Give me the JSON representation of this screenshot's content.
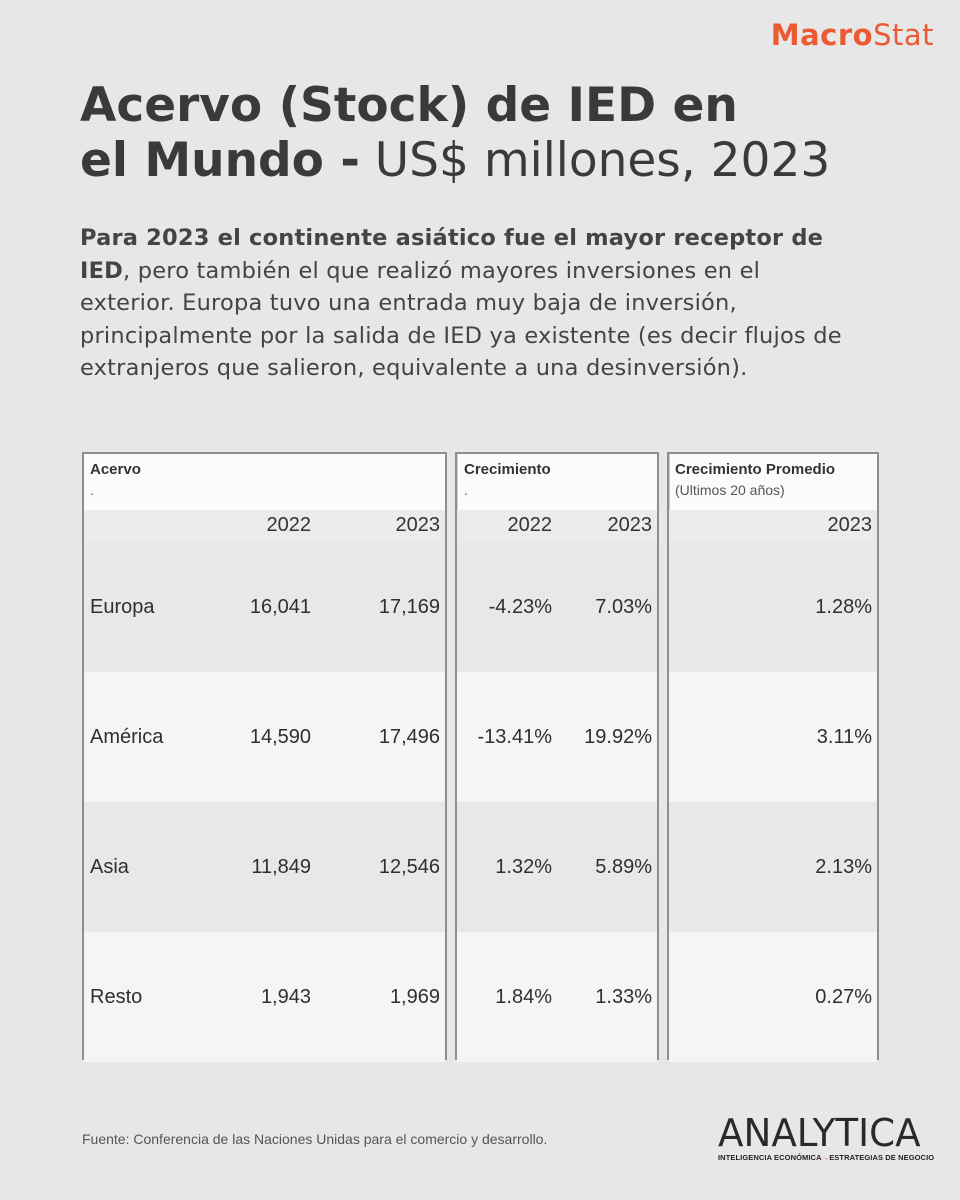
{
  "brand": {
    "part1": "Macro",
    "part2": "Stat"
  },
  "title": {
    "bold_line1": "Acervo (Stock) de IED en",
    "bold_line2": "el Mundo -",
    "normal": " US$ millones, 2023"
  },
  "intro": {
    "bold": "Para 2023 el continente asiático fue el mayor receptor de IED",
    "rest": ", pero también el que realizó mayores inversiones en el exterior.  Europa tuvo una entrada muy baja de inversión, principalmente por la salida de IED ya existente (es decir flujos de extranjeros que salieron, equivalente a una desinversión)."
  },
  "tables": {
    "acervo": {
      "title": "Acervo",
      "subtitle": ".",
      "years": [
        "2022",
        "2023"
      ]
    },
    "crecimiento": {
      "title": "Crecimiento",
      "subtitle": ".",
      "years": [
        "2022",
        "2023"
      ]
    },
    "promedio": {
      "title": "Crecimiento Promedio",
      "subtitle": "(Ultimos 20 años)",
      "years": [
        "2023"
      ]
    },
    "rows": [
      {
        "region": "Europa",
        "acervo_2022": "16,041",
        "acervo_2023": "17,169",
        "crec_2022": "-4.23%",
        "crec_2023": "7.03%",
        "prom_2023": "1.28%"
      },
      {
        "region": "América",
        "acervo_2022": "14,590",
        "acervo_2023": "17,496",
        "crec_2022": "-13.41%",
        "crec_2023": "19.92%",
        "prom_2023": "3.11%"
      },
      {
        "region": "Asia",
        "acervo_2022": "11,849",
        "acervo_2023": "12,546",
        "crec_2022": "1.32%",
        "crec_2023": "5.89%",
        "prom_2023": "2.13%"
      },
      {
        "region": "Resto",
        "acervo_2022": "1,943",
        "acervo_2023": "1,969",
        "crec_2022": "1.84%",
        "crec_2023": "1.33%",
        "prom_2023": "0.27%"
      }
    ]
  },
  "footer": {
    "source": "Fuente: Conferencia de las Naciones Unidas para el comercio y desarrollo.",
    "logo_word": "ANALYTICA",
    "logo_tag_left": "INTELIGENCIA ECONÓMICA",
    "logo_tag_arrow": "→",
    "logo_tag_right": "ESTRATEGIAS DE NEGOCIO"
  },
  "colors": {
    "accent": "#ec5a33",
    "background": "#e7e7e7",
    "text": "#3a3a3a"
  }
}
